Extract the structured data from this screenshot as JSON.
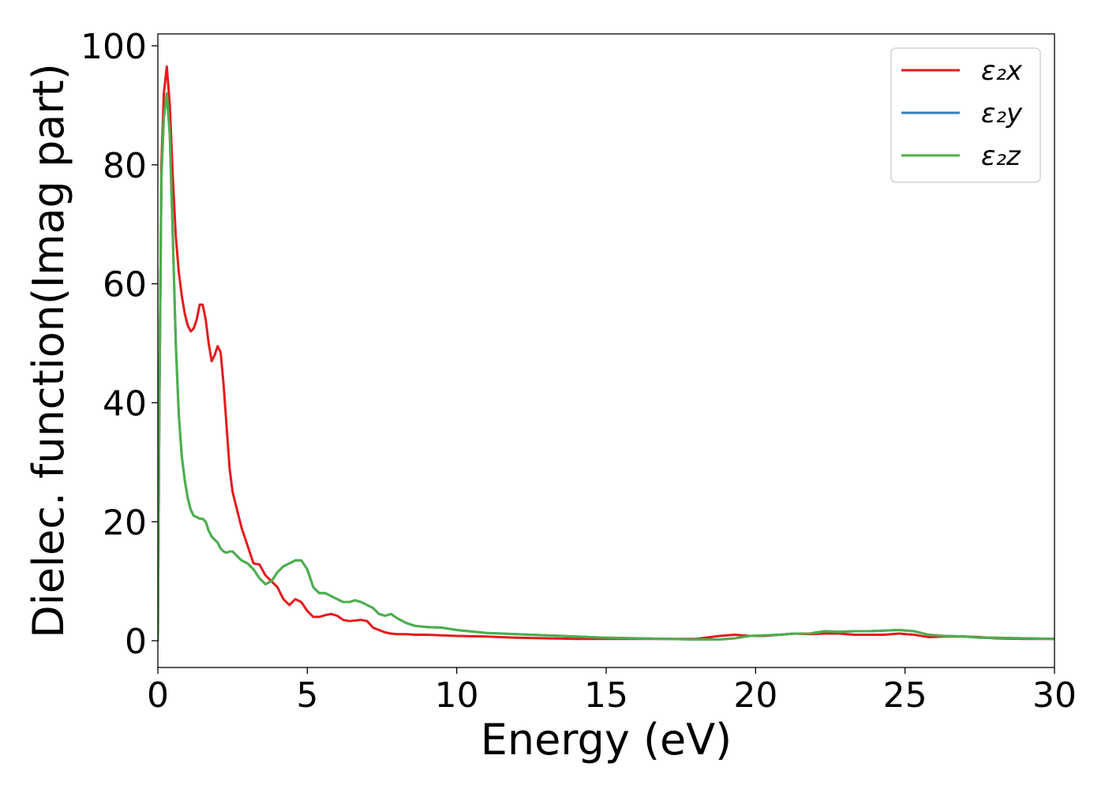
{
  "chart_data": {
    "type": "line",
    "xlabel": "Energy (eV)",
    "ylabel": "Dielec. function(Imag part)",
    "xlim": [
      0,
      30
    ],
    "ylim": [
      -4.5,
      102
    ],
    "xticks": [
      0,
      5,
      10,
      15,
      20,
      25,
      30
    ],
    "yticks": [
      0,
      20,
      40,
      60,
      80,
      100
    ],
    "grid": false,
    "legend_position": "top-right",
    "series": [
      {
        "name": "ε₂x",
        "color": "#e41a1c",
        "x": [
          0,
          0.05,
          0.12,
          0.2,
          0.3,
          0.4,
          0.5,
          0.6,
          0.7,
          0.8,
          0.9,
          1.0,
          1.1,
          1.2,
          1.3,
          1.4,
          1.5,
          1.6,
          1.7,
          1.8,
          1.9,
          2.0,
          2.1,
          2.2,
          2.3,
          2.4,
          2.5,
          2.6,
          2.7,
          2.8,
          3.0,
          3.2,
          3.4,
          3.6,
          3.8,
          4.0,
          4.2,
          4.4,
          4.6,
          4.8,
          5.0,
          5.2,
          5.4,
          5.6,
          5.8,
          6.0,
          6.2,
          6.4,
          6.6,
          6.8,
          7.0,
          7.2,
          7.4,
          7.6,
          7.8,
          8.0,
          8.3,
          8.6,
          9.0,
          9.5,
          10,
          11,
          12,
          13,
          14,
          15,
          16,
          17,
          18,
          18.8,
          19.3,
          19.8,
          20.3,
          20.8,
          21.3,
          21.8,
          22.3,
          22.8,
          23.3,
          23.8,
          24.3,
          24.8,
          25.3,
          25.8,
          26.3,
          27,
          27.5,
          28,
          29,
          30
        ],
        "y": [
          0,
          40,
          80,
          92,
          96.5,
          90,
          78,
          68,
          62,
          58,
          55,
          53,
          52,
          52.5,
          54,
          56.5,
          56.5,
          54,
          50,
          47,
          48,
          49.5,
          48.5,
          43,
          36,
          29,
          25,
          23,
          21,
          19,
          16,
          13,
          12.8,
          11,
          10,
          9,
          7,
          6,
          7,
          6.5,
          5,
          4,
          4,
          4.3,
          4.5,
          4.2,
          3.5,
          3.3,
          3.4,
          3.5,
          3.3,
          2.2,
          1.8,
          1.4,
          1.2,
          1.1,
          1.1,
          1.0,
          1.0,
          0.9,
          0.8,
          0.7,
          0.5,
          0.4,
          0.3,
          0.3,
          0.3,
          0.3,
          0.3,
          0.8,
          1.0,
          0.8,
          0.8,
          1.0,
          1.2,
          1.1,
          1.2,
          1.2,
          1.0,
          1.0,
          1.0,
          1.2,
          1.0,
          0.6,
          0.7,
          0.7,
          0.6,
          0.4,
          0.3,
          0.3
        ]
      },
      {
        "name": "ε₂y",
        "color": "#377eb8",
        "x": [
          0,
          0.05,
          0.12,
          0.2,
          0.3,
          0.4,
          0.5,
          0.6,
          0.7,
          0.8,
          0.9,
          1.0,
          1.1,
          1.2,
          1.3,
          1.4,
          1.5,
          1.6,
          1.7,
          1.8,
          1.9,
          2.0,
          2.1,
          2.2,
          2.3,
          2.4,
          2.5,
          2.6,
          2.7,
          2.8,
          3.0,
          3.2,
          3.4,
          3.6,
          3.8,
          4.0,
          4.2,
          4.4,
          4.6,
          4.8,
          5.0,
          5.2,
          5.4,
          5.6,
          5.8,
          6.0,
          6.2,
          6.4,
          6.6,
          6.8,
          7.0,
          7.2,
          7.4,
          7.6,
          7.8,
          8.0,
          8.3,
          8.6,
          9.0,
          9.5,
          10,
          11,
          12,
          13,
          14,
          15,
          16,
          17,
          18,
          18.8,
          19.3,
          19.8,
          20.3,
          20.8,
          21.3,
          21.8,
          22.3,
          22.8,
          23.3,
          23.8,
          24.3,
          24.8,
          25.3,
          25.8,
          26.3,
          27,
          27.5,
          28,
          29,
          30
        ],
        "y": [
          0,
          40,
          78,
          88,
          92,
          85,
          68,
          50,
          38,
          31,
          27,
          24,
          22,
          21,
          20.8,
          20.5,
          20.5,
          20,
          18.5,
          17.5,
          17,
          16.5,
          15.5,
          15,
          14.8,
          15,
          15,
          14.5,
          14,
          13.5,
          13,
          12,
          10.5,
          9.5,
          10,
          11.5,
          12.5,
          13,
          13.5,
          13.5,
          12,
          9,
          8,
          8,
          7.5,
          7,
          6.5,
          6.5,
          6.8,
          6.5,
          6,
          5.5,
          4.5,
          4.2,
          4.5,
          3.8,
          3.0,
          2.5,
          2.3,
          2.2,
          1.8,
          1.3,
          1.1,
          0.9,
          0.7,
          0.5,
          0.4,
          0.3,
          0.2,
          0.2,
          0.4,
          0.8,
          0.9,
          1.0,
          1.2,
          1.2,
          1.6,
          1.5,
          1.6,
          1.6,
          1.7,
          1.8,
          1.6,
          1.0,
          0.8,
          0.7,
          0.5,
          0.5,
          0.4,
          0.3
        ]
      },
      {
        "name": "ε₂z",
        "color": "#4daf4a",
        "x": [
          0,
          0.05,
          0.12,
          0.2,
          0.3,
          0.4,
          0.5,
          0.6,
          0.7,
          0.8,
          0.9,
          1.0,
          1.1,
          1.2,
          1.3,
          1.4,
          1.5,
          1.6,
          1.7,
          1.8,
          1.9,
          2.0,
          2.1,
          2.2,
          2.3,
          2.4,
          2.5,
          2.6,
          2.7,
          2.8,
          3.0,
          3.2,
          3.4,
          3.6,
          3.8,
          4.0,
          4.2,
          4.4,
          4.6,
          4.8,
          5.0,
          5.2,
          5.4,
          5.6,
          5.8,
          6.0,
          6.2,
          6.4,
          6.6,
          6.8,
          7.0,
          7.2,
          7.4,
          7.6,
          7.8,
          8.0,
          8.3,
          8.6,
          9.0,
          9.5,
          10,
          11,
          12,
          13,
          14,
          15,
          16,
          17,
          18,
          18.8,
          19.3,
          19.8,
          20.3,
          20.8,
          21.3,
          21.8,
          22.3,
          22.8,
          23.3,
          23.8,
          24.3,
          24.8,
          25.3,
          25.8,
          26.3,
          27,
          27.5,
          28,
          29,
          30
        ],
        "y": [
          0,
          40,
          78,
          88,
          92,
          85,
          68,
          50,
          38,
          31,
          27,
          24,
          22,
          21,
          20.8,
          20.5,
          20.5,
          20,
          18.5,
          17.5,
          17,
          16.5,
          15.5,
          15,
          14.8,
          15,
          15,
          14.5,
          14,
          13.5,
          13,
          12,
          10.5,
          9.5,
          10,
          11.5,
          12.5,
          13,
          13.5,
          13.5,
          12,
          9,
          8,
          8,
          7.5,
          7,
          6.5,
          6.5,
          6.8,
          6.5,
          6,
          5.5,
          4.5,
          4.2,
          4.5,
          3.8,
          3.0,
          2.5,
          2.3,
          2.2,
          1.8,
          1.3,
          1.1,
          0.9,
          0.7,
          0.5,
          0.4,
          0.3,
          0.2,
          0.2,
          0.4,
          0.8,
          0.9,
          1.0,
          1.2,
          1.2,
          1.6,
          1.5,
          1.6,
          1.6,
          1.7,
          1.8,
          1.6,
          1.0,
          0.8,
          0.7,
          0.5,
          0.5,
          0.4,
          0.3
        ]
      }
    ]
  }
}
